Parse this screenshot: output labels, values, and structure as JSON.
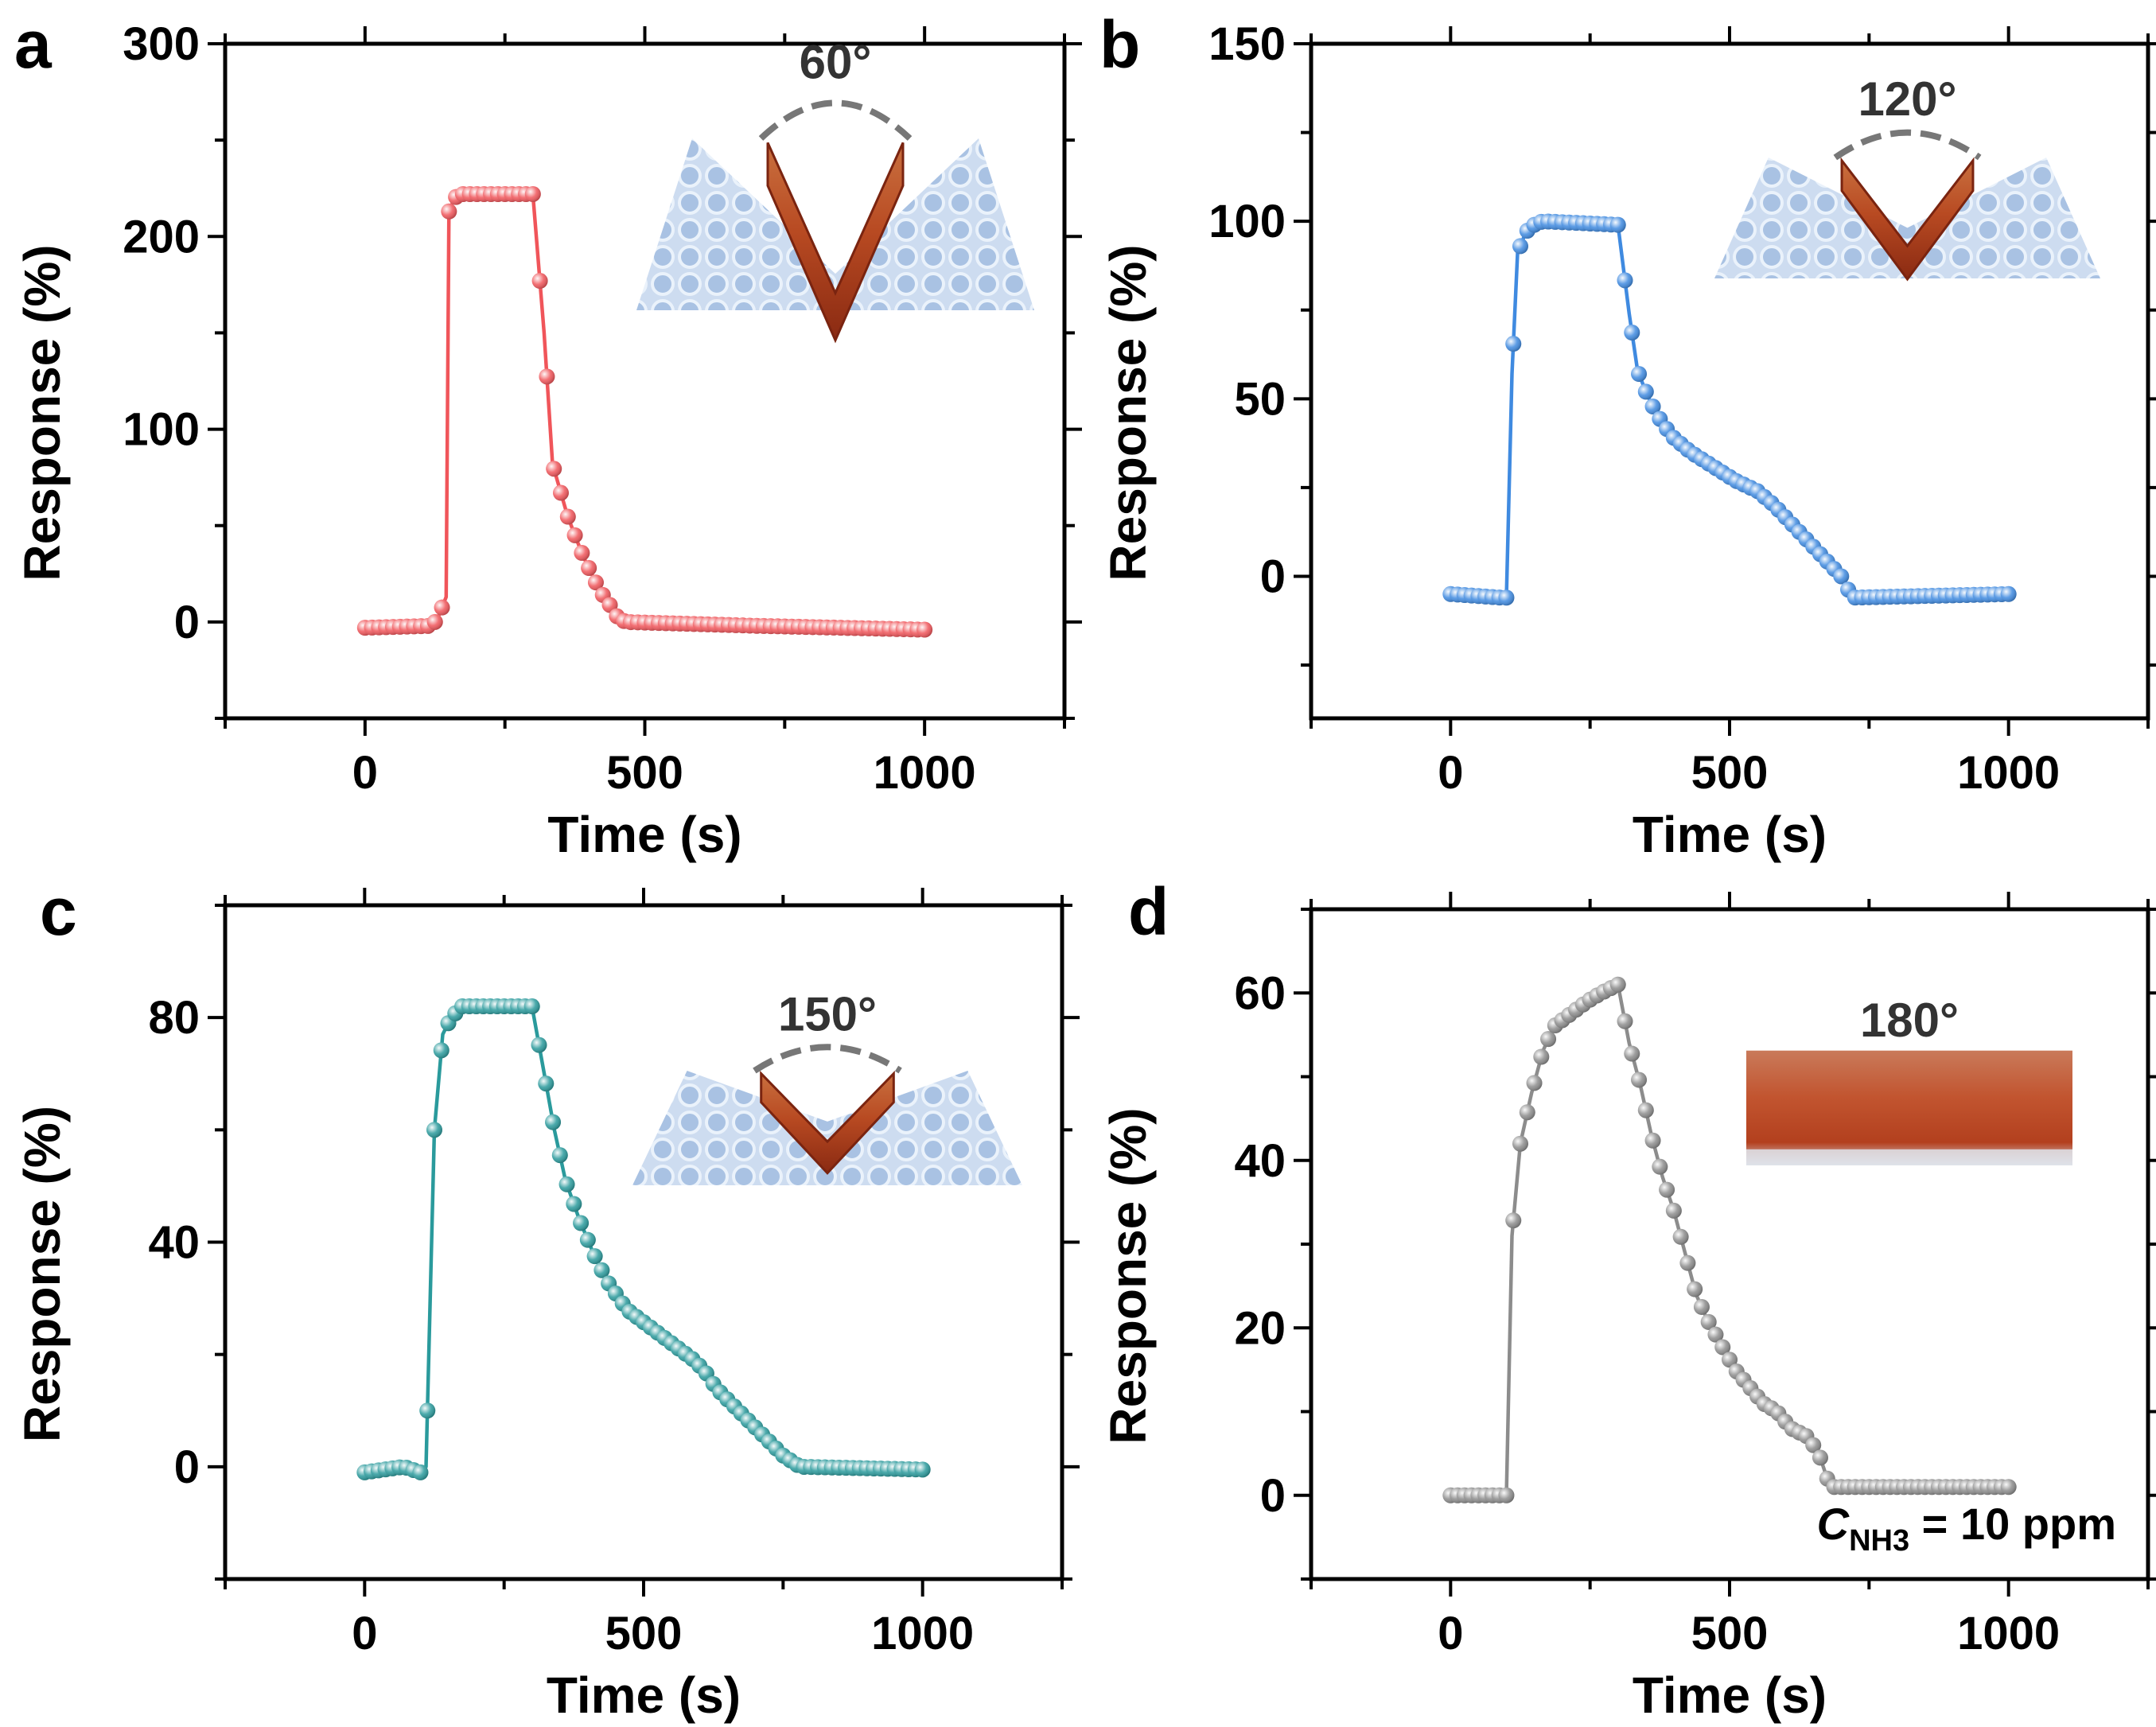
{
  "chart_data": [
    {
      "id": "a",
      "panel_label": "a",
      "type": "line",
      "xlabel": "Time (s)",
      "ylabel": "Response (%)",
      "xlim": [
        -250,
        1250
      ],
      "ylim": [
        -50,
        300
      ],
      "xticks": [
        0,
        500,
        1000
      ],
      "yticks": [
        0,
        100,
        200,
        300
      ],
      "color": "#f0555a",
      "inset": {
        "angle_label": "60°",
        "kind": "bent",
        "depth": 1.0
      },
      "series": [
        {
          "name": "60°",
          "points": [
            [
              0,
              -3
            ],
            [
              120,
              -2
            ],
            [
              130,
              2
            ],
            [
              145,
              13
            ],
            [
              150,
              213
            ],
            [
              160,
              220
            ],
            [
              170,
              222
            ],
            [
              300,
              222
            ],
            [
              320,
              150
            ],
            [
              335,
              82
            ],
            [
              350,
              67
            ],
            [
              362,
              55
            ],
            [
              375,
              45
            ],
            [
              390,
              34
            ],
            [
              405,
              25
            ],
            [
              420,
              16
            ],
            [
              435,
              10
            ],
            [
              450,
              3
            ],
            [
              465,
              0
            ],
            [
              700,
              -2
            ],
            [
              1000,
              -4
            ]
          ]
        }
      ]
    },
    {
      "id": "b",
      "panel_label": "b",
      "type": "line",
      "xlabel": "Time (s)",
      "ylabel": "Response (%)",
      "xlim": [
        -250,
        1250
      ],
      "ylim": [
        -40,
        150
      ],
      "xticks": [
        0,
        500,
        1000
      ],
      "yticks": [
        0,
        50,
        100,
        150
      ],
      "color": "#3f8ae0",
      "inset": {
        "angle_label": "120°",
        "kind": "bent",
        "depth": 0.7
      },
      "series": [
        {
          "name": "120°",
          "points": [
            [
              0,
              -5
            ],
            [
              90,
              -6
            ],
            [
              100,
              -6
            ],
            [
              110,
              57
            ],
            [
              120,
              91
            ],
            [
              135,
              97
            ],
            [
              150,
              99
            ],
            [
              165,
              100
            ],
            [
              300,
              99
            ],
            [
              320,
              74
            ],
            [
              335,
              58
            ],
            [
              350,
              52
            ],
            [
              365,
              47
            ],
            [
              380,
              43
            ],
            [
              400,
              39
            ],
            [
              430,
              35
            ],
            [
              470,
              31
            ],
            [
              510,
              27
            ],
            [
              550,
              24
            ],
            [
              580,
              20
            ],
            [
              610,
              15
            ],
            [
              640,
              10
            ],
            [
              670,
              5
            ],
            [
              700,
              0
            ],
            [
              720,
              -6
            ],
            [
              1000,
              -5
            ]
          ]
        }
      ]
    },
    {
      "id": "c",
      "panel_label": "c",
      "type": "line",
      "xlabel": "Time (s)",
      "ylabel": "Response (%)",
      "xlim": [
        -250,
        1250
      ],
      "ylim": [
        -20,
        100
      ],
      "xticks": [
        0,
        500,
        1000
      ],
      "yticks": [
        0,
        40,
        80
      ],
      "color": "#2a9a9c",
      "inset": {
        "angle_label": "150°",
        "kind": "bent",
        "depth": 0.5
      },
      "series": [
        {
          "name": "150°",
          "points": [
            [
              0,
              -1
            ],
            [
              70,
              0
            ],
            [
              100,
              -1
            ],
            [
              110,
              0
            ],
            [
              125,
              60
            ],
            [
              140,
              77
            ],
            [
              155,
              80
            ],
            [
              175,
              82
            ],
            [
              300,
              82
            ],
            [
              320,
              71
            ],
            [
              340,
              60
            ],
            [
              360,
              51
            ],
            [
              385,
              44
            ],
            [
              410,
              38
            ],
            [
              435,
              33
            ],
            [
              470,
              28
            ],
            [
              510,
              25
            ],
            [
              550,
              22
            ],
            [
              590,
              19
            ],
            [
              610,
              17
            ],
            [
              630,
              14
            ],
            [
              660,
              11
            ],
            [
              690,
              8
            ],
            [
              720,
              5
            ],
            [
              750,
              2
            ],
            [
              780,
              0
            ],
            [
              1000,
              -0.5
            ]
          ]
        }
      ]
    },
    {
      "id": "d",
      "panel_label": "d",
      "type": "line",
      "xlabel": "Time (s)",
      "ylabel": "Response (%)",
      "xlim": [
        -250,
        1250
      ],
      "ylim": [
        -10,
        70
      ],
      "xticks": [
        0,
        500,
        1000
      ],
      "yticks": [
        0,
        20,
        40,
        60
      ],
      "color": "#8c8c8c",
      "inset": {
        "angle_label": "180°",
        "kind": "flat",
        "depth": 0.0
      },
      "annotation": {
        "prefix": "C",
        "subscript": "NH3",
        "suffix": " = 10 ppm"
      },
      "series": [
        {
          "name": "180°",
          "points": [
            [
              0,
              0
            ],
            [
              90,
              0
            ],
            [
              100,
              0
            ],
            [
              110,
              31
            ],
            [
              125,
              42
            ],
            [
              145,
              48
            ],
            [
              165,
              53
            ],
            [
              185,
              56
            ],
            [
              205,
              57
            ],
            [
              225,
              58
            ],
            [
              245,
              59
            ],
            [
              270,
              60
            ],
            [
              300,
              61
            ],
            [
              320,
              54
            ],
            [
              340,
              49
            ],
            [
              360,
              43
            ],
            [
              380,
              38
            ],
            [
              400,
              34
            ],
            [
              420,
              29
            ],
            [
              440,
              24
            ],
            [
              460,
              21
            ],
            [
              485,
              18
            ],
            [
              510,
              15
            ],
            [
              535,
              13
            ],
            [
              560,
              11
            ],
            [
              585,
              10
            ],
            [
              610,
              8
            ],
            [
              640,
              7
            ],
            [
              660,
              5
            ],
            [
              680,
              1
            ],
            [
              1000,
              1
            ]
          ]
        }
      ]
    }
  ]
}
